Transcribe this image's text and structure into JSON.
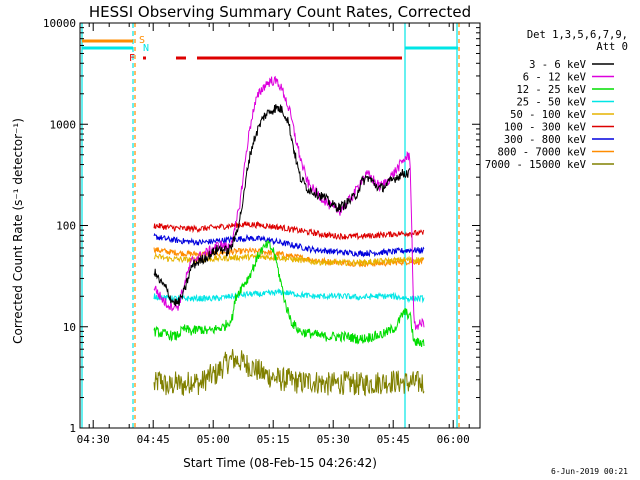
{
  "chart_data": {
    "type": "line",
    "title": "HESSI Observing Summary Count Rates, Corrected",
    "xlabel": "Start Time (08-Feb-15 04:26:42)",
    "ylabel": "Corrected Count Rate (s⁻¹ detector⁻¹)",
    "footer": "6-Jun-2019 00:21",
    "scale_y": "log",
    "xlim_minutes": [
      0,
      100
    ],
    "ylim": [
      1,
      10000
    ],
    "x_ticks": [
      {
        "value": 3.3,
        "label": "04:30"
      },
      {
        "value": 18.3,
        "label": "04:45"
      },
      {
        "value": 33.3,
        "label": "05:00"
      },
      {
        "value": 48.3,
        "label": "05:15"
      },
      {
        "value": 63.3,
        "label": "05:30"
      },
      {
        "value": 78.3,
        "label": "05:45"
      },
      {
        "value": 93.3,
        "label": "06:00"
      }
    ],
    "y_ticks": [
      {
        "value": 1,
        "label": "1"
      },
      {
        "value": 10,
        "label": "10"
      },
      {
        "value": 100,
        "label": "100"
      },
      {
        "value": 1000,
        "label": "1000"
      },
      {
        "value": 10000,
        "label": "10000"
      }
    ],
    "legend_header": [
      "Det 1,3,5,6,7,9,",
      "Att 0"
    ],
    "flags": {
      "S": "S",
      "N": "N",
      "F": "F"
    },
    "time_start": "08-Feb-15 04:26:42",
    "series": [
      {
        "name": "3 - 6 keV",
        "color": "#000000",
        "points": [
          [
            18.5,
            35
          ],
          [
            20,
            28
          ],
          [
            21.5,
            24
          ],
          [
            23,
            18
          ],
          [
            24.5,
            17
          ],
          [
            26,
            22
          ],
          [
            27,
            30
          ],
          [
            28,
            40
          ],
          [
            30,
            45
          ],
          [
            32,
            50
          ],
          [
            33.5,
            55
          ],
          [
            35,
            60
          ],
          [
            37,
            55
          ],
          [
            38.5,
            70
          ],
          [
            40,
            120
          ],
          [
            41,
            200
          ],
          [
            42,
            400
          ],
          [
            43,
            600
          ],
          [
            44,
            800
          ],
          [
            45,
            1000
          ],
          [
            46,
            1200
          ],
          [
            47.5,
            1350
          ],
          [
            49,
            1450
          ],
          [
            50.5,
            1400
          ],
          [
            52,
            1100
          ],
          [
            53,
            700
          ],
          [
            54,
            450
          ],
          [
            55,
            300
          ],
          [
            57,
            230
          ],
          [
            59,
            210
          ],
          [
            61,
            190
          ],
          [
            63,
            160
          ],
          [
            65,
            150
          ],
          [
            67,
            170
          ],
          [
            69,
            200
          ],
          [
            70.5,
            270
          ],
          [
            72,
            300
          ],
          [
            73.5,
            260
          ],
          [
            75,
            230
          ],
          [
            77,
            260
          ],
          [
            79,
            300
          ],
          [
            81,
            330
          ],
          [
            82.5,
            330
          ]
        ]
      },
      {
        "name": "6 - 12 keV",
        "color": "#dd00dd",
        "points": [
          [
            18.5,
            25
          ],
          [
            20,
            20
          ],
          [
            21.5,
            17
          ],
          [
            23,
            16
          ],
          [
            24.5,
            16
          ],
          [
            26,
            25
          ],
          [
            27,
            35
          ],
          [
            28,
            45
          ],
          [
            30,
            50
          ],
          [
            32,
            55
          ],
          [
            33.5,
            60
          ],
          [
            35,
            65
          ],
          [
            37,
            60
          ],
          [
            38.5,
            80
          ],
          [
            40,
            170
          ],
          [
            41,
            350
          ],
          [
            42,
            700
          ],
          [
            43,
            1200
          ],
          [
            44,
            1700
          ],
          [
            45,
            2100
          ],
          [
            46.5,
            2500
          ],
          [
            48,
            2700
          ],
          [
            49.5,
            2600
          ],
          [
            51,
            2000
          ],
          [
            52.5,
            1300
          ],
          [
            54,
            700
          ],
          [
            55.5,
            400
          ],
          [
            57,
            260
          ],
          [
            59,
            210
          ],
          [
            61,
            180
          ],
          [
            63,
            150
          ],
          [
            65,
            140
          ],
          [
            67,
            170
          ],
          [
            69,
            220
          ],
          [
            70.5,
            290
          ],
          [
            72,
            320
          ],
          [
            73.5,
            280
          ],
          [
            75,
            240
          ],
          [
            77,
            280
          ],
          [
            79,
            350
          ],
          [
            81,
            450
          ],
          [
            82.5,
            500
          ],
          [
            83.5,
            10
          ],
          [
            86,
            11
          ]
        ]
      },
      {
        "name": "12 - 25 keV",
        "color": "#00dd00",
        "points": [
          [
            18.5,
            9
          ],
          [
            21,
            8.5
          ],
          [
            24,
            8
          ],
          [
            26,
            9.5
          ],
          [
            28,
            9
          ],
          [
            30,
            9.5
          ],
          [
            32,
            9
          ],
          [
            34,
            9.5
          ],
          [
            36,
            10
          ],
          [
            38,
            12
          ],
          [
            39,
            20
          ],
          [
            40.5,
            25
          ],
          [
            42,
            30
          ],
          [
            43.5,
            40
          ],
          [
            45,
            55
          ],
          [
            47,
            65
          ],
          [
            48.5,
            55
          ],
          [
            50,
            30
          ],
          [
            51.5,
            16
          ],
          [
            53,
            11
          ],
          [
            55,
            9
          ],
          [
            58,
            8.5
          ],
          [
            61,
            8
          ],
          [
            64,
            8
          ],
          [
            67,
            8
          ],
          [
            70,
            7.5
          ],
          [
            73,
            8
          ],
          [
            76,
            8.5
          ],
          [
            79,
            10
          ],
          [
            81,
            14
          ],
          [
            82.5,
            13
          ],
          [
            83.5,
            7
          ],
          [
            86,
            7
          ]
        ]
      },
      {
        "name": "25 - 50 keV",
        "color": "#00e6e6",
        "points": [
          [
            18.5,
            20
          ],
          [
            22,
            19
          ],
          [
            26,
            19
          ],
          [
            30,
            19
          ],
          [
            34,
            19
          ],
          [
            38,
            20
          ],
          [
            42,
            21
          ],
          [
            46,
            21
          ],
          [
            50,
            22
          ],
          [
            54,
            21
          ],
          [
            58,
            20
          ],
          [
            62,
            20
          ],
          [
            66,
            20
          ],
          [
            70,
            19.5
          ],
          [
            74,
            20
          ],
          [
            78,
            20
          ],
          [
            82,
            19
          ],
          [
            86,
            19
          ]
        ]
      },
      {
        "name": "50 - 100 keV",
        "color": "#e6b400",
        "points": [
          [
            18.5,
            50
          ],
          [
            22,
            47
          ],
          [
            26,
            46
          ],
          [
            30,
            46
          ],
          [
            34,
            47
          ],
          [
            38,
            48
          ],
          [
            42,
            49
          ],
          [
            46,
            49
          ],
          [
            50,
            48
          ],
          [
            54,
            46
          ],
          [
            58,
            44
          ],
          [
            62,
            43
          ],
          [
            66,
            43
          ],
          [
            70,
            43
          ],
          [
            74,
            44
          ],
          [
            78,
            45
          ],
          [
            82,
            46
          ],
          [
            86,
            46
          ]
        ]
      },
      {
        "name": "100 - 300 keV",
        "color": "#dd0000",
        "points": [
          [
            18.5,
            100
          ],
          [
            22,
            96
          ],
          [
            26,
            93
          ],
          [
            30,
            93
          ],
          [
            34,
            96
          ],
          [
            38,
            100
          ],
          [
            42,
            103
          ],
          [
            46,
            100
          ],
          [
            50,
            96
          ],
          [
            54,
            90
          ],
          [
            58,
            85
          ],
          [
            62,
            80
          ],
          [
            66,
            78
          ],
          [
            70,
            78
          ],
          [
            74,
            80
          ],
          [
            78,
            82
          ],
          [
            82,
            84
          ],
          [
            86,
            84
          ]
        ]
      },
      {
        "name": "300 - 800 keV",
        "color": "#0000dd",
        "points": [
          [
            18.5,
            78
          ],
          [
            22,
            73
          ],
          [
            26,
            70
          ],
          [
            30,
            68
          ],
          [
            34,
            70
          ],
          [
            38,
            73
          ],
          [
            42,
            75
          ],
          [
            46,
            73
          ],
          [
            50,
            68
          ],
          [
            54,
            63
          ],
          [
            58,
            58
          ],
          [
            62,
            56
          ],
          [
            66,
            54
          ],
          [
            70,
            53
          ],
          [
            74,
            54
          ],
          [
            78,
            55
          ],
          [
            82,
            57
          ],
          [
            86,
            57
          ]
        ]
      },
      {
        "name": "800 - 7000 keV",
        "color": "#ff8c00",
        "points": [
          [
            18.5,
            58
          ],
          [
            22,
            55
          ],
          [
            26,
            53
          ],
          [
            30,
            52
          ],
          [
            34,
            53
          ],
          [
            38,
            55
          ],
          [
            42,
            56
          ],
          [
            46,
            55
          ],
          [
            50,
            52
          ],
          [
            54,
            49
          ],
          [
            58,
            46
          ],
          [
            62,
            44
          ],
          [
            66,
            43
          ],
          [
            70,
            42
          ],
          [
            74,
            42
          ],
          [
            78,
            43
          ],
          [
            82,
            44
          ],
          [
            86,
            44
          ]
        ]
      },
      {
        "name": "7000 - 15000 keV",
        "color": "#808000",
        "points": [
          [
            18.5,
            2.6
          ],
          [
            20,
            3
          ],
          [
            22,
            2.5
          ],
          [
            24,
            2.8
          ],
          [
            26,
            2.6
          ],
          [
            28,
            3
          ],
          [
            30,
            2.7
          ],
          [
            32,
            3.2
          ],
          [
            34,
            3.4
          ],
          [
            36,
            4.2
          ],
          [
            38,
            4.8
          ],
          [
            40,
            4.6
          ],
          [
            42,
            4.2
          ],
          [
            44,
            3.8
          ],
          [
            46,
            3.4
          ],
          [
            48,
            3.2
          ],
          [
            50,
            3
          ],
          [
            52,
            3
          ],
          [
            55,
            2.8
          ],
          [
            58,
            2.9
          ],
          [
            62,
            2.7
          ],
          [
            66,
            2.8
          ],
          [
            70,
            2.7
          ],
          [
            74,
            2.8
          ],
          [
            78,
            2.9
          ],
          [
            82,
            2.8
          ],
          [
            86,
            2.8
          ]
        ]
      }
    ]
  }
}
